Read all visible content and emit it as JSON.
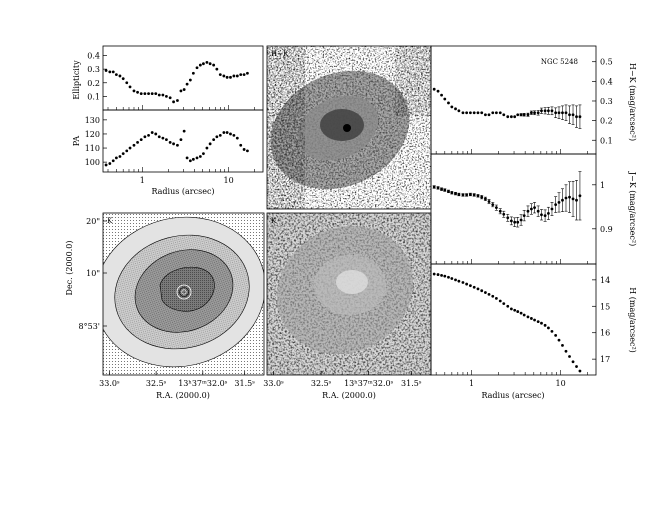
{
  "figure": {
    "panel_labels": {
      "hk": "H−K",
      "k_image": "K",
      "k_contour": "K"
    }
  },
  "chart_data": [
    {
      "type": "scatter",
      "name": "ellipticity",
      "ylabel": "Ellipticity",
      "xscale": "log",
      "xlim": [
        0.35,
        25
      ],
      "ylim": [
        0.0,
        0.47
      ],
      "yticks": [
        "0.1",
        "0.2",
        "0.3",
        "0.4"
      ],
      "x": [
        0.38,
        0.42,
        0.46,
        0.5,
        0.55,
        0.6,
        0.66,
        0.72,
        0.8,
        0.88,
        0.97,
        1.07,
        1.18,
        1.3,
        1.43,
        1.57,
        1.73,
        1.9,
        2.1,
        2.3,
        2.55,
        2.8,
        3.05,
        3.3,
        3.6,
        3.9,
        4.3,
        4.7,
        5.1,
        5.6,
        6.1,
        6.7,
        7.3,
        8.0,
        8.8,
        9.6,
        10.5,
        11.5,
        12.6,
        13.8,
        15.1,
        16.5
      ],
      "y": [
        0.29,
        0.28,
        0.28,
        0.26,
        0.25,
        0.23,
        0.2,
        0.17,
        0.14,
        0.13,
        0.12,
        0.12,
        0.12,
        0.12,
        0.12,
        0.11,
        0.11,
        0.1,
        0.09,
        0.06,
        0.07,
        0.14,
        0.15,
        0.19,
        0.22,
        0.27,
        0.31,
        0.33,
        0.34,
        0.35,
        0.34,
        0.33,
        0.3,
        0.26,
        0.25,
        0.24,
        0.24,
        0.25,
        0.25,
        0.26,
        0.26,
        0.27
      ]
    },
    {
      "type": "scatter",
      "name": "position-angle",
      "ylabel": "PA",
      "xlabel": "Radius (arcsec)",
      "xscale": "log",
      "xlim": [
        0.35,
        25
      ],
      "ylim": [
        93,
        137
      ],
      "yticks": [
        "100",
        "110",
        "120",
        "130"
      ],
      "xticks": [
        "1",
        "10"
      ],
      "x": [
        0.38,
        0.42,
        0.46,
        0.5,
        0.55,
        0.6,
        0.66,
        0.72,
        0.8,
        0.88,
        0.97,
        1.07,
        1.18,
        1.3,
        1.43,
        1.57,
        1.73,
        1.9,
        2.1,
        2.3,
        2.55,
        2.8,
        3.05,
        3.3,
        3.6,
        3.9,
        4.3,
        4.7,
        5.1,
        5.6,
        6.1,
        6.7,
        7.3,
        8.0,
        8.8,
        9.6,
        10.5,
        11.5,
        12.6,
        13.8,
        15.1,
        16.5
      ],
      "y": [
        98,
        99,
        101,
        103,
        104,
        106,
        108,
        110,
        112,
        114,
        116,
        118,
        119,
        121,
        120,
        118,
        117,
        116,
        114,
        113,
        112,
        116,
        122,
        103,
        101,
        102,
        103,
        104,
        106,
        110,
        113,
        116,
        118,
        119,
        121,
        121,
        120,
        119,
        117,
        112,
        109,
        108
      ]
    },
    {
      "type": "scatter",
      "name": "h-k-color",
      "ylabel": "H−K (mag/arcsec²)",
      "xscale": "log",
      "xlim": [
        0.35,
        25
      ],
      "ylim": [
        0.03,
        0.58
      ],
      "yticks": [
        "0.1",
        "0.2",
        "0.3",
        "0.4",
        "0.5"
      ],
      "annotation": "NGC 5248",
      "x": [
        0.38,
        0.42,
        0.46,
        0.5,
        0.55,
        0.6,
        0.66,
        0.72,
        0.8,
        0.88,
        0.97,
        1.07,
        1.18,
        1.3,
        1.43,
        1.57,
        1.73,
        1.9,
        2.1,
        2.3,
        2.55,
        2.8,
        3.05,
        3.3,
        3.6,
        3.9,
        4.3,
        4.7,
        5.1,
        5.6,
        6.1,
        6.7,
        7.3,
        8.0,
        8.8,
        9.6,
        10.5,
        11.5,
        12.6,
        13.8,
        15.1,
        16.5
      ],
      "y": [
        0.36,
        0.35,
        0.33,
        0.31,
        0.29,
        0.27,
        0.26,
        0.25,
        0.24,
        0.24,
        0.24,
        0.24,
        0.24,
        0.24,
        0.23,
        0.23,
        0.24,
        0.24,
        0.24,
        0.23,
        0.22,
        0.22,
        0.22,
        0.23,
        0.23,
        0.23,
        0.23,
        0.24,
        0.24,
        0.24,
        0.25,
        0.25,
        0.25,
        0.25,
        0.24,
        0.24,
        0.24,
        0.24,
        0.23,
        0.23,
        0.22,
        0.22
      ],
      "err": [
        0.005,
        0.005,
        0.005,
        0.005,
        0.005,
        0.005,
        0.005,
        0.005,
        0.005,
        0.005,
        0.005,
        0.005,
        0.005,
        0.005,
        0.005,
        0.005,
        0.005,
        0.005,
        0.005,
        0.005,
        0.005,
        0.005,
        0.005,
        0.005,
        0.006,
        0.007,
        0.008,
        0.009,
        0.01,
        0.012,
        0.014,
        0.016,
        0.018,
        0.02,
        0.025,
        0.03,
        0.035,
        0.04,
        0.045,
        0.05,
        0.055,
        0.06
      ]
    },
    {
      "type": "scatter",
      "name": "j-k-color",
      "ylabel": "J−K (mag/arcsec²)",
      "xscale": "log",
      "xlim": [
        0.35,
        25
      ],
      "ylim": [
        0.82,
        1.07
      ],
      "yticks": [
        "0.9",
        "1"
      ],
      "x": [
        0.38,
        0.42,
        0.46,
        0.5,
        0.55,
        0.6,
        0.66,
        0.72,
        0.8,
        0.88,
        0.97,
        1.07,
        1.18,
        1.3,
        1.43,
        1.57,
        1.73,
        1.9,
        2.1,
        2.3,
        2.55,
        2.8,
        3.05,
        3.3,
        3.6,
        3.9,
        4.3,
        4.7,
        5.1,
        5.6,
        6.1,
        6.7,
        7.3,
        8.0,
        8.8,
        9.6,
        10.5,
        11.5,
        12.6,
        13.8,
        15.1,
        16.5
      ],
      "y": [
        0.995,
        0.993,
        0.99,
        0.988,
        0.985,
        0.982,
        0.98,
        0.978,
        0.977,
        0.977,
        0.978,
        0.977,
        0.975,
        0.972,
        0.968,
        0.962,
        0.955,
        0.948,
        0.94,
        0.933,
        0.925,
        0.918,
        0.915,
        0.915,
        0.92,
        0.93,
        0.94,
        0.945,
        0.948,
        0.94,
        0.932,
        0.93,
        0.935,
        0.945,
        0.955,
        0.96,
        0.965,
        0.97,
        0.972,
        0.968,
        0.965,
        0.975
      ],
      "err": [
        0.003,
        0.003,
        0.003,
        0.003,
        0.003,
        0.003,
        0.003,
        0.003,
        0.003,
        0.003,
        0.003,
        0.003,
        0.003,
        0.004,
        0.004,
        0.005,
        0.005,
        0.006,
        0.006,
        0.007,
        0.008,
        0.009,
        0.01,
        0.011,
        0.012,
        0.012,
        0.012,
        0.012,
        0.012,
        0.012,
        0.012,
        0.013,
        0.014,
        0.015,
        0.018,
        0.022,
        0.026,
        0.03,
        0.035,
        0.04,
        0.045,
        0.055
      ]
    },
    {
      "type": "scatter",
      "name": "h-surface-brightness",
      "ylabel": "H (mag/arcsec²)",
      "xlabel": "Radius (arcsec)",
      "xscale": "log",
      "xlim": [
        0.35,
        25
      ],
      "ylim": [
        17.6,
        13.4
      ],
      "yticks": [
        "14",
        "15",
        "16",
        "17"
      ],
      "xticks": [
        "1",
        "10"
      ],
      "x": [
        0.38,
        0.42,
        0.46,
        0.5,
        0.55,
        0.6,
        0.66,
        0.72,
        0.8,
        0.88,
        0.97,
        1.07,
        1.18,
        1.3,
        1.43,
        1.57,
        1.73,
        1.9,
        2.1,
        2.3,
        2.55,
        2.8,
        3.05,
        3.3,
        3.6,
        3.9,
        4.3,
        4.7,
        5.1,
        5.6,
        6.1,
        6.7,
        7.3,
        8.0,
        8.8,
        9.6,
        10.5,
        11.5,
        12.6,
        13.8,
        15.1,
        16.5
      ],
      "y": [
        13.78,
        13.8,
        13.83,
        13.86,
        13.9,
        13.95,
        14.0,
        14.05,
        14.1,
        14.16,
        14.22,
        14.28,
        14.34,
        14.41,
        14.48,
        14.55,
        14.62,
        14.7,
        14.8,
        14.9,
        15.0,
        15.1,
        15.15,
        15.2,
        15.26,
        15.33,
        15.4,
        15.46,
        15.52,
        15.58,
        15.64,
        15.72,
        15.82,
        15.95,
        16.1,
        16.28,
        16.48,
        16.7,
        16.9,
        17.1,
        17.28,
        17.45
      ]
    },
    {
      "type": "heatmap",
      "name": "k-band-contour-image",
      "xlabel": "R.A. (2000.0)",
      "ylabel": "Dec. (2000.0)",
      "xticks": [
        "33.0ˢ",
        "32.5ˢ",
        "13ʰ37ᵐ32.0ˢ",
        "31.5ˢ"
      ],
      "yticks": [
        "20\"",
        "10\"",
        "8°53'"
      ]
    },
    {
      "type": "heatmap",
      "name": "h-k-color-map-and-k-image",
      "xlabel": "R.A. (2000.0)",
      "xticks": [
        "33.0ˢ",
        "32.5ˢ",
        "13ʰ37ᵐ32.0ˢ",
        "31.5ˢ"
      ]
    }
  ]
}
